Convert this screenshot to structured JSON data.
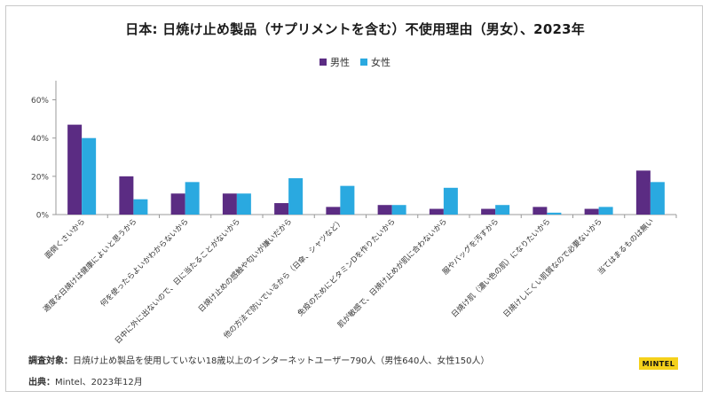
{
  "title": "日本: 日焼け止め製品（サプリメントを含む）不使用理由（男女）、2023年",
  "legend": {
    "male": "男性",
    "female": "女性"
  },
  "colors": {
    "male": "#5b2c83",
    "female": "#2aa9e0"
  },
  "chart_data": {
    "type": "bar",
    "categories": [
      "面倒くさいから",
      "適度な日焼けは健康によいと思うから",
      "何を使ったらよいかわからないから",
      "日中に外に出ないので、日に当たることがないから",
      "日焼け止めの感触や匂いが嫌いだから",
      "他の方法で防いでいるから（日傘、シャツなど）",
      "免疫のためにビタミンDを作りたいから",
      "肌が敏感で、日焼け止めが肌に合わないから",
      "服やバッグを汚すから",
      "日焼け肌（濃い色の肌）になりたいから",
      "日焼けしにくい肌質なので必要ないから",
      "当てはまるものは無い"
    ],
    "series": [
      {
        "name": "男性",
        "values": [
          47,
          20,
          11,
          11,
          6,
          4,
          5,
          3,
          3,
          4,
          3,
          23
        ]
      },
      {
        "name": "女性",
        "values": [
          40,
          8,
          17,
          11,
          19,
          15,
          5,
          14,
          5,
          1,
          4,
          17
        ]
      }
    ],
    "yticks": [
      "0%",
      "20%",
      "40%",
      "60%"
    ],
    "ylim": [
      0,
      70
    ]
  },
  "footer": {
    "subject_label": "調査対象：",
    "subject_text": "日焼け止め製品を使用していない18歳以上のインターネットユーザー790人（男性640人、女性150人）",
    "source_label": "出典：",
    "source_text": "Mintel、2023年12月",
    "logo": "MINTEL"
  }
}
